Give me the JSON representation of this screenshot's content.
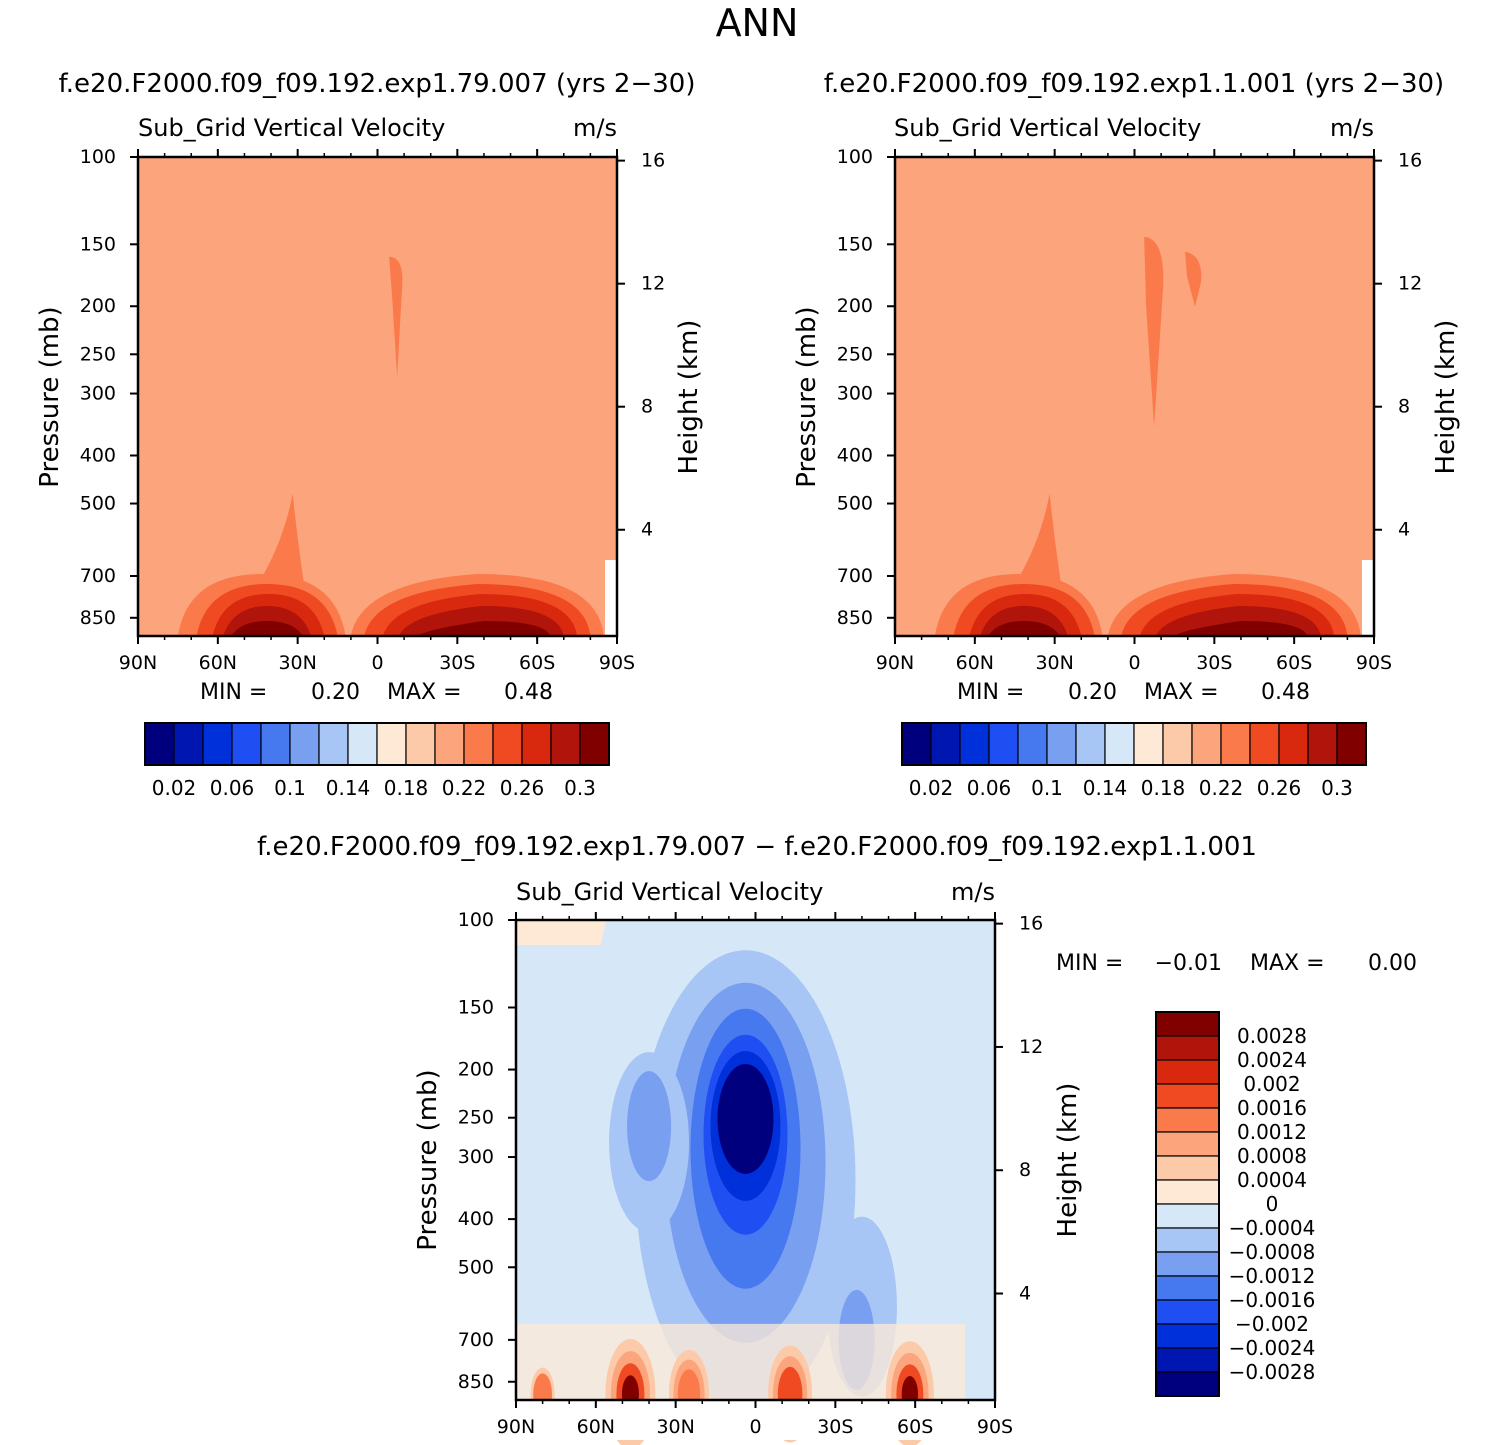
{
  "figure_title": "ANN",
  "chart_data": [
    {
      "type": "heatmap",
      "case_title": "f.e20.F2000.f09_f09.192.exp1.79.007 (yrs 2−30)",
      "variable_label": "Sub_Grid Vertical Velocity",
      "units_label": "m/s",
      "ylabel": "Pressure (mb)",
      "ylabel_right": "Height (km)",
      "x_ticks": [
        "90N",
        "60N",
        "30N",
        "0",
        "30S",
        "60S",
        "90S"
      ],
      "x_range": [
        90,
        -90
      ],
      "y_ticks": [
        "100",
        "150",
        "200",
        "250",
        "300",
        "400",
        "500",
        "700",
        "850"
      ],
      "y_range": [
        100,
        925
      ],
      "y_right_ticks": [
        "16",
        "12",
        "8",
        "4"
      ],
      "min_label": "MIN =",
      "min_value": "0.20",
      "max_label": "MAX =",
      "max_value": "0.48",
      "colorbar_labels": [
        "0.02",
        "0.06",
        "0.1",
        "0.14",
        "0.18",
        "0.22",
        "0.26",
        "0.3"
      ],
      "colorbar_levels": [
        0.02,
        0.04,
        0.06,
        0.08,
        0.1,
        0.12,
        0.14,
        0.16,
        0.18,
        0.2,
        0.22,
        0.24,
        0.26,
        0.28,
        0.3
      ],
      "background_level": "0.2",
      "features": [
        {
          "name": "upper-tropical-max",
          "lat": -7,
          "p": 210,
          "value": 0.22
        },
        {
          "name": "nh-boundary-layer-max",
          "lat": 45,
          "p": 880,
          "value": 0.3
        },
        {
          "name": "sh-boundary-layer-max",
          "lat": -50,
          "p": 880,
          "value": 0.3
        }
      ]
    },
    {
      "type": "heatmap",
      "case_title": "f.e20.F2000.f09_f09.192.exp1.1.001 (yrs 2−30)",
      "variable_label": "Sub_Grid Vertical Velocity",
      "units_label": "m/s",
      "ylabel": "Pressure (mb)",
      "ylabel_right": "Height (km)",
      "x_ticks": [
        "90N",
        "60N",
        "30N",
        "0",
        "30S",
        "60S",
        "90S"
      ],
      "x_range": [
        90,
        -90
      ],
      "y_ticks": [
        "100",
        "150",
        "200",
        "250",
        "300",
        "400",
        "500",
        "700",
        "850"
      ],
      "y_range": [
        100,
        925
      ],
      "y_right_ticks": [
        "16",
        "12",
        "8",
        "4"
      ],
      "min_label": "MIN =",
      "min_value": "0.20",
      "max_label": "MAX =",
      "max_value": "0.48",
      "colorbar_labels": [
        "0.02",
        "0.06",
        "0.1",
        "0.14",
        "0.18",
        "0.22",
        "0.26",
        "0.3"
      ],
      "colorbar_levels": [
        0.02,
        0.04,
        0.06,
        0.08,
        0.1,
        0.12,
        0.14,
        0.16,
        0.18,
        0.2,
        0.22,
        0.24,
        0.26,
        0.28,
        0.3
      ],
      "background_level": "0.2",
      "features": [
        {
          "name": "upper-tropical-max",
          "lat": -7,
          "p": 230,
          "value": 0.22
        },
        {
          "name": "upper-tropical-max-2",
          "lat": -10,
          "p": 200,
          "value": 0.22
        },
        {
          "name": "nh-boundary-layer-max",
          "lat": 45,
          "p": 880,
          "value": 0.3
        },
        {
          "name": "sh-boundary-layer-max",
          "lat": -50,
          "p": 880,
          "value": 0.3
        }
      ]
    },
    {
      "type": "heatmap",
      "case_title": "f.e20.F2000.f09_f09.192.exp1.79.007 − f.e20.F2000.f09_f09.192.exp1.1.001",
      "variable_label": "Sub_Grid Vertical Velocity",
      "units_label": "m/s",
      "ylabel": "Pressure (mb)",
      "ylabel_right": "Height (km)",
      "x_ticks": [
        "90N",
        "60N",
        "30N",
        "0",
        "30S",
        "60S",
        "90S"
      ],
      "x_range": [
        90,
        -90
      ],
      "y_ticks": [
        "100",
        "150",
        "200",
        "250",
        "300",
        "400",
        "500",
        "700",
        "850"
      ],
      "y_range": [
        100,
        925
      ],
      "y_right_ticks": [
        "16",
        "12",
        "8",
        "4"
      ],
      "min_label": "MIN =",
      "min_value": "−0.01",
      "max_label": "MAX =",
      "max_value": "0.00",
      "colorbar_labels": [
        "0.0028",
        "0.0024",
        "0.002",
        "0.0016",
        "0.0012",
        "0.0008",
        "0.0004",
        "0",
        "−0.0004",
        "−0.0008",
        "−0.0012",
        "−0.0016",
        "−0.002",
        "−0.0024",
        "−0.0028"
      ],
      "background_level": "-0.0004",
      "features": [
        {
          "name": "tropical-upper-min",
          "lat": 0,
          "p": 220,
          "value": -0.0032
        },
        {
          "name": "nh-subtropical-negative",
          "lat": 40,
          "p": 270,
          "value": -0.0012
        },
        {
          "name": "sh-midlevel-negative",
          "lat": -40,
          "p": 650,
          "value": -0.0016
        },
        {
          "name": "nh-surface-positive",
          "lat": 47,
          "p": 900,
          "value": 0.003
        },
        {
          "name": "sh-surface-positive",
          "lat": -58,
          "p": 900,
          "value": 0.003
        }
      ]
    }
  ],
  "colors": {
    "blue_red_scale": [
      "#00007f",
      "#0016b0",
      "#0030d9",
      "#1f4ff2",
      "#4678f0",
      "#789ff0",
      "#a7c5f5",
      "#d6e8f8",
      "#fde9d6",
      "#fcc9a9",
      "#fca47c",
      "#fa7a4b",
      "#f04a22",
      "#d8280d",
      "#b0140a",
      "#800000"
    ],
    "blue_red_scale_16": [
      "#800000",
      "#b0140a",
      "#d8280d",
      "#f04a22",
      "#fa7a4b",
      "#fca47c",
      "#fcc9a9",
      "#fde9d6",
      "#d6e8f8",
      "#a7c5f5",
      "#789ff0",
      "#4678f0",
      "#1f4ff2",
      "#0030d9",
      "#0016b0",
      "#00007f"
    ]
  }
}
